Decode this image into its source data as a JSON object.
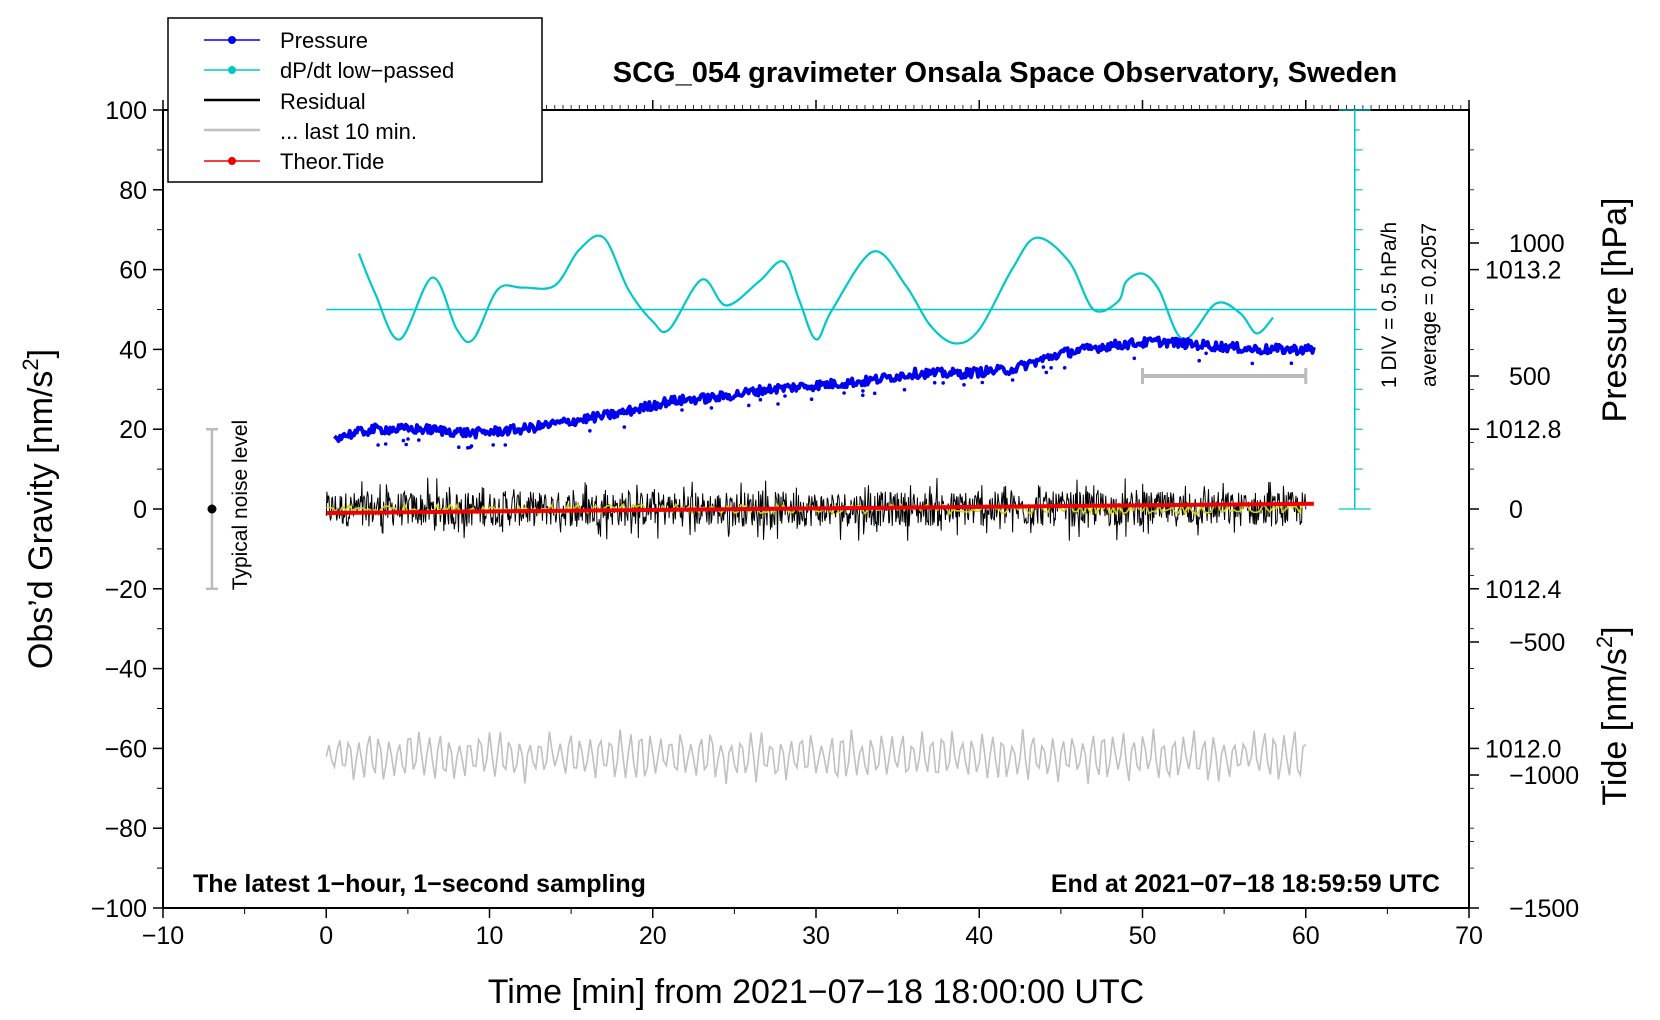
{
  "chart_data": {
    "type": "line",
    "title": "SCG_054 gravimeter Onsala Space Observatory, Sweden",
    "xlabel": "Time [min] from 2021−07−18 18:00:00 UTC",
    "ylabel_left": "Obs’d Gravity [nm/s²]",
    "ylabel_left_parts": {
      "main": "Obs’d Gravity [nm/s",
      "sup": "2",
      "end": "]"
    },
    "ylabel_pressure": "Pressure [hPa]",
    "ylabel_tide": "Tide [nm/s²]",
    "ylabel_tide_parts": {
      "main": "Tide [nm/s",
      "sup": "2",
      "end": "]"
    },
    "xlim": [
      -10,
      70
    ],
    "ylim_left": [
      -100,
      100
    ],
    "ylim_pressure": [
      1011.6,
      1013.6
    ],
    "ylim_tide": [
      -1500,
      1500
    ],
    "xticks": [
      -10,
      0,
      10,
      20,
      30,
      40,
      50,
      60,
      70
    ],
    "xtick_labels": [
      "−10",
      "0",
      "10",
      "20",
      "30",
      "40",
      "50",
      "60",
      "70"
    ],
    "yticks_left": [
      -100,
      -80,
      -60,
      -40,
      -20,
      0,
      20,
      40,
      60,
      80,
      100
    ],
    "ytick_labels_left": [
      "−100",
      "−80",
      "−60",
      "−40",
      "−20",
      "0",
      "20",
      "40",
      "60",
      "80",
      "100"
    ],
    "yticks_pressure": [
      1012.0,
      1012.4,
      1012.8,
      1013.2
    ],
    "ytick_labels_pressure": [
      "1012.0",
      "1012.4",
      "1012.8",
      "1013.2"
    ],
    "yticks_tide": [
      -1500,
      -1000,
      -500,
      0,
      500,
      1000
    ],
    "ytick_labels_tide": [
      "−1500",
      "−1000",
      "−500",
      "0",
      "500",
      "1000"
    ],
    "legend": {
      "placement": "top-left",
      "entries": [
        {
          "label": "Pressure",
          "color": "#0000ee",
          "marker": true
        },
        {
          "label": "dP/dt low−passed",
          "color": "#00c8c8",
          "marker": true
        },
        {
          "label": "Residual",
          "color": "#000000",
          "marker": false
        },
        {
          "label": "... last 10 min.",
          "color": "#c0c0c0",
          "marker": false
        },
        {
          "label": "Theor.Tide",
          "color": "#ee0000",
          "marker": true
        }
      ]
    },
    "annotations": {
      "bottom_left": "The latest 1−hour, 1−second sampling",
      "bottom_right": "End at 2021−07−18 18:59:59 UTC",
      "noise_label": "Typical noise level",
      "dpdt_scale": "1 DIV = 0.5 hPa/h",
      "dpdt_average": "average = 0.2057"
    },
    "noise_bar": {
      "x": -7,
      "center": 0,
      "low": -20,
      "high": 20
    },
    "dpdt_axis": {
      "x": 63,
      "baseline": 50,
      "top": 100,
      "bottom": 0,
      "division": 5
    },
    "last10_bar": {
      "x_start": 50,
      "x_end": 60,
      "y_tide": 500
    },
    "series": [
      {
        "name": "Pressure",
        "axis": "pressure",
        "color": "#0000ee",
        "x": [
          0.5,
          3,
          6,
          9,
          12,
          15,
          18,
          21,
          24,
          27,
          30,
          33,
          36,
          39,
          42,
          45,
          48,
          51,
          54,
          57,
          60.5
        ],
        "y": [
          1012.78,
          1012.8,
          1012.8,
          1012.79,
          1012.8,
          1012.82,
          1012.84,
          1012.87,
          1012.88,
          1012.9,
          1012.91,
          1012.92,
          1012.94,
          1012.94,
          1012.95,
          1012.99,
          1013.01,
          1013.02,
          1013.01,
          1013.0,
          1013.0
        ]
      },
      {
        "name": "dP/dt low−passed",
        "axis": "left",
        "color": "#00c8c8",
        "x": [
          2,
          3,
          4.5,
          6.5,
          8,
          9,
          10.5,
          12,
          14,
          15.5,
          17,
          18.5,
          20,
          21,
          23,
          24.5,
          26.5,
          28,
          29,
          30,
          31,
          33.5,
          35.5,
          37,
          38.5,
          40,
          42,
          43.5,
          45.5,
          47,
          48.5,
          49,
          50,
          51,
          52.5,
          54.5,
          56,
          57,
          58
        ],
        "y": [
          64,
          54,
          42.5,
          58,
          45,
          42.5,
          55,
          55.5,
          56,
          65,
          68,
          55,
          47,
          45,
          57.5,
          51,
          57,
          62,
          52,
          42.5,
          50,
          64.5,
          56,
          46,
          41.5,
          45,
          60,
          68,
          62,
          50,
          52,
          57,
          59,
          55,
          42.5,
          51.5,
          49,
          44,
          48
        ]
      },
      {
        "name": "Residual",
        "axis": "left",
        "color": "#000000",
        "x": [
          0,
          60
        ],
        "y": [
          0,
          0
        ],
        "envelope": [
          -8,
          8
        ]
      },
      {
        "name": "... last 10 min.",
        "axis": "left",
        "color": "#c0c0c0",
        "x": [
          0,
          60
        ],
        "y": [
          -62,
          -62
        ],
        "envelope": [
          -68,
          -54
        ]
      },
      {
        "name": "Theor.Tide",
        "axis": "tide",
        "color": "#ee0000",
        "x": [
          0,
          60.5
        ],
        "y": [
          -15,
          20
        ]
      }
    ]
  }
}
